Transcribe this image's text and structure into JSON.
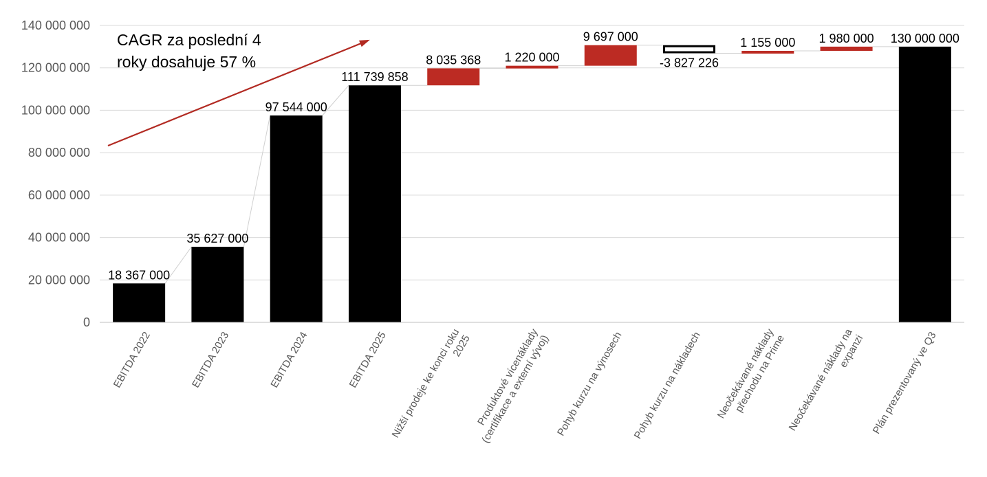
{
  "chart_data": {
    "type": "bar",
    "subtype": "waterfall",
    "title": "",
    "xlabel": "",
    "ylabel": "",
    "ylim": [
      0,
      140000000
    ],
    "yticks": [
      0,
      20000000,
      40000000,
      60000000,
      80000000,
      100000000,
      120000000,
      140000000
    ],
    "ytick_labels": [
      "0",
      "20 000 000",
      "40 000 000",
      "60 000 000",
      "80 000 000",
      "100 000 000",
      "120 000 000",
      "140 000 000"
    ],
    "grid": true,
    "legend": "none",
    "categories": [
      "EBITDA 2022",
      "EBITDA 2023",
      "EBITDA 2024",
      "EBITDA 2025",
      "Nižší prodeje ke konci roku 2025",
      "Produktové vícenáklady (certifikace a externí vývoj)",
      "Pohyb kurzu na výnosech",
      "Pohyb kurzu na nákladech",
      "Neočekávané náklady přechodu na Prime",
      "Neočekávané náklady na expanzi",
      "Plán prezentovaný ve Q3"
    ],
    "category_lines": [
      [
        "EBITDA 2022"
      ],
      [
        "EBITDA 2023"
      ],
      [
        "EBITDA 2024"
      ],
      [
        "EBITDA 2025"
      ],
      [
        "Nižší prodeje ke konci roku",
        "2025"
      ],
      [
        "Produktové vícenáklady",
        "(certifikace a externí vývoj)"
      ],
      [
        "Pohyb kurzu na výnosech"
      ],
      [
        "Pohyb kurzu na nákladech"
      ],
      [
        "Neočekávané náklady",
        "přechodu na Prime"
      ],
      [
        "Neočekávané náklady na",
        "expanzi"
      ],
      [
        "Plán prezentovaný ve Q3"
      ]
    ],
    "bars": [
      {
        "kind": "total",
        "start": 0,
        "end": 18367000,
        "value": 18367000,
        "label": "18 367 000"
      },
      {
        "kind": "total",
        "start": 0,
        "end": 35627000,
        "value": 35627000,
        "label": "35 627 000"
      },
      {
        "kind": "total",
        "start": 0,
        "end": 97544000,
        "value": 97544000,
        "label": "97 544 000"
      },
      {
        "kind": "total",
        "start": 0,
        "end": 111739858,
        "value": 111739858,
        "label": "111 739 858"
      },
      {
        "kind": "increase",
        "start": 111739858,
        "end": 119775226,
        "value": 8035368,
        "label": "8 035 368"
      },
      {
        "kind": "increase",
        "start": 119775226,
        "end": 120995226,
        "value": 1220000,
        "label": "1 220 000"
      },
      {
        "kind": "increase",
        "start": 120995226,
        "end": 130692226,
        "value": 9697000,
        "label": "9 697 000"
      },
      {
        "kind": "decrease",
        "start": 130692226,
        "end": 126865000,
        "value": -3827226,
        "label": "-3 827 226"
      },
      {
        "kind": "increase",
        "start": 126865000,
        "end": 128020000,
        "value": 1155000,
        "label": "1 155 000"
      },
      {
        "kind": "increase",
        "start": 128020000,
        "end": 130000000,
        "value": 1980000,
        "label": "1 980 000"
      },
      {
        "kind": "total",
        "start": 0,
        "end": 130000000,
        "value": 130000000,
        "label": "130 000 000"
      }
    ],
    "colors": {
      "total": "#000000",
      "increase": "#BC2B23",
      "decrease_fill": "#ffffff",
      "decrease_stroke": "#000000",
      "arrow": "#B22A22",
      "connector": "#d0d0d0",
      "grid": "#d9d9d9",
      "axis": "#bfbfbf",
      "tick_text": "#595959"
    },
    "annotation": {
      "lines": [
        "CAGR za poslední 4",
        "roky dosahuje 57 %"
      ]
    }
  }
}
